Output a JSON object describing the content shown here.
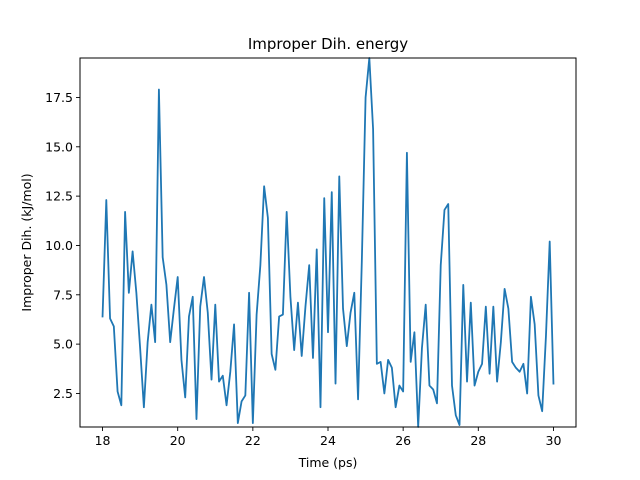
{
  "chart_data": {
    "type": "line",
    "title": "Improper Dih. energy",
    "xlabel": "Time (ps)",
    "ylabel": "Improper Dih. (kJ/mol)",
    "xlim": [
      17.4,
      30.6
    ],
    "ylim": [
      0.8,
      19.5
    ],
    "xticks": [
      18,
      20,
      22,
      24,
      26,
      28,
      30
    ],
    "yticks": [
      2.5,
      5.0,
      7.5,
      10.0,
      12.5,
      15.0,
      17.5
    ],
    "xtick_labels": [
      "18",
      "20",
      "22",
      "24",
      "26",
      "28",
      "30"
    ],
    "ytick_labels": [
      "2.5",
      "5.0",
      "7.5",
      "10.0",
      "12.5",
      "15.0",
      "17.5"
    ],
    "grid": false,
    "series": [
      {
        "color": "#1f77b4",
        "x": [
          18.0,
          18.1,
          18.2,
          18.3,
          18.4,
          18.5,
          18.6,
          18.7,
          18.8,
          18.9,
          19.0,
          19.1,
          19.2,
          19.3,
          19.4,
          19.5,
          19.6,
          19.7,
          19.8,
          19.9,
          20.0,
          20.1,
          20.2,
          20.3,
          20.4,
          20.5,
          20.6,
          20.7,
          20.8,
          20.9,
          21.0,
          21.1,
          21.2,
          21.3,
          21.4,
          21.5,
          21.6,
          21.7,
          21.8,
          21.9,
          22.0,
          22.1,
          22.2,
          22.3,
          22.4,
          22.5,
          22.6,
          22.7,
          22.8,
          22.9,
          23.0,
          23.1,
          23.2,
          23.3,
          23.4,
          23.5,
          23.6,
          23.7,
          23.8,
          23.9,
          24.0,
          24.1,
          24.2,
          24.3,
          24.4,
          24.5,
          24.6,
          24.7,
          24.8,
          24.9,
          25.0,
          25.1,
          25.2,
          25.3,
          25.4,
          25.5,
          25.6,
          25.7,
          25.8,
          25.9,
          26.0,
          26.1,
          26.2,
          26.3,
          26.4,
          26.5,
          26.6,
          26.7,
          26.8,
          26.9,
          27.0,
          27.1,
          27.2,
          27.3,
          27.4,
          27.5,
          27.6,
          27.7,
          27.8,
          27.9,
          28.0,
          28.1,
          28.2,
          28.3,
          28.4,
          28.5,
          28.6,
          28.7,
          28.8,
          28.9,
          29.0,
          29.1,
          29.2,
          29.3,
          29.4,
          29.5,
          29.6,
          29.7,
          29.8,
          29.9,
          30.0
        ],
        "y": [
          6.4,
          12.3,
          6.3,
          5.9,
          2.6,
          1.9,
          11.7,
          7.6,
          9.7,
          7.6,
          4.8,
          1.8,
          5.1,
          7.0,
          5.1,
          17.9,
          9.4,
          8.0,
          5.1,
          6.8,
          8.4,
          4.2,
          2.3,
          6.4,
          7.4,
          1.2,
          6.9,
          8.4,
          6.6,
          3.2,
          7.0,
          3.1,
          3.4,
          1.9,
          3.6,
          6.0,
          1.0,
          2.1,
          2.4,
          7.6,
          1.0,
          6.5,
          9.0,
          13.0,
          11.4,
          4.5,
          3.7,
          6.4,
          6.5,
          11.7,
          7.4,
          4.7,
          7.1,
          4.4,
          6.9,
          9.0,
          4.3,
          9.8,
          1.8,
          12.4,
          5.6,
          12.7,
          3.0,
          13.5,
          6.8,
          4.9,
          6.6,
          7.6,
          2.2,
          9.2,
          17.5,
          19.5,
          15.9,
          4.0,
          4.1,
          2.5,
          4.2,
          3.8,
          1.8,
          2.9,
          2.6,
          14.7,
          4.1,
          5.6,
          0.8,
          4.8,
          7.0,
          2.9,
          2.7,
          2.0,
          9.0,
          11.8,
          12.1,
          2.9,
          1.4,
          0.9,
          8.0,
          3.1,
          7.1,
          2.9,
          3.6,
          4.0,
          6.9,
          3.5,
          6.9,
          3.1,
          5.1,
          7.8,
          6.8,
          4.1,
          3.8,
          3.6,
          4.0,
          2.5,
          7.4,
          6.0,
          2.4,
          1.6,
          5.4,
          10.2,
          3.0
        ]
      }
    ]
  }
}
